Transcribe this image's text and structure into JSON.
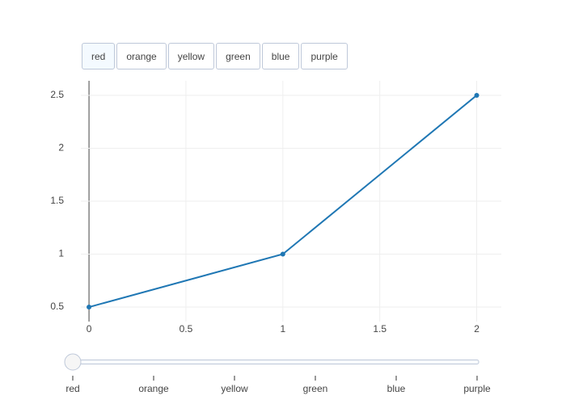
{
  "chart_data": {
    "type": "line",
    "x": [
      0,
      1,
      2
    ],
    "series": [
      {
        "color": "#1f77b4",
        "values": [
          0.5,
          1,
          2.5
        ]
      }
    ],
    "xlim": [
      -0.042,
      2.127
    ],
    "ylim": [
      0.363,
      2.637
    ],
    "xticks": [
      0,
      0.5,
      1,
      1.5,
      2
    ],
    "yticks": [
      0.5,
      1,
      1.5,
      2,
      2.5
    ],
    "grid": true,
    "markers": true
  },
  "buttons": {
    "labels": [
      "red",
      "orange",
      "yellow",
      "green",
      "blue",
      "purple"
    ],
    "active": 0
  },
  "slider": {
    "labels": [
      "red",
      "orange",
      "yellow",
      "green",
      "blue",
      "purple"
    ],
    "active": 0
  }
}
